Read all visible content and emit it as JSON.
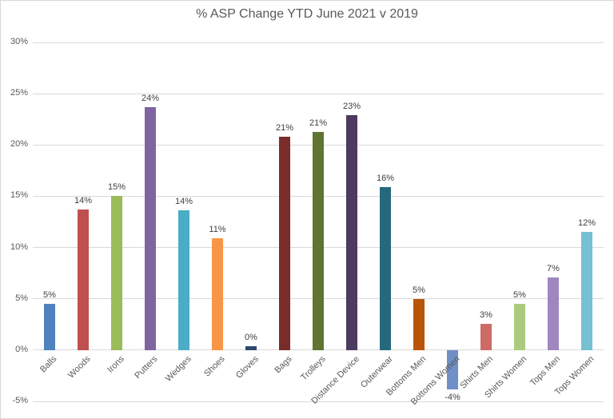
{
  "window": {
    "background_color": "#FFFFFF",
    "border_color": "#D7D7D7"
  },
  "chart_data": {
    "type": "bar",
    "title": "% ASP Change YTD June 2021 v 2019",
    "categories": [
      "Balls",
      "Woods",
      "Irons",
      "Putters",
      "Wedges",
      "Shoes",
      "Gloves",
      "Bags",
      "Trolleys",
      "Distance Device",
      "Outerwear",
      "Bottoms Men",
      "Bottoms Women",
      "Shirts Men",
      "Shirts Women",
      "Tops Men",
      "Tops Women"
    ],
    "values": [
      4.5,
      13.7,
      15.0,
      23.7,
      13.6,
      10.9,
      0.4,
      20.8,
      21.3,
      22.9,
      15.9,
      5.0,
      -3.8,
      2.6,
      4.5,
      7.1,
      11.5
    ],
    "data_labels": [
      "5%",
      "14%",
      "15%",
      "24%",
      "14%",
      "11%",
      "0%",
      "21%",
      "21%",
      "23%",
      "16%",
      "5%",
      "-4%",
      "3%",
      "5%",
      "7%",
      "12%"
    ],
    "bar_colors": [
      "#4F81BD",
      "#C0504D",
      "#9BBB59",
      "#8064A2",
      "#4BACC6",
      "#F79646",
      "#2C4A6E",
      "#7A2C2B",
      "#5F7530",
      "#4D3A60",
      "#26697C",
      "#B85509",
      "#6F8FC6",
      "#CD6B67",
      "#ABCA7D",
      "#9E86BE",
      "#75C0D3"
    ],
    "xlabel": "",
    "ylabel": "",
    "ylim": [
      -5,
      30
    ],
    "yticks": [
      30,
      25,
      20,
      15,
      10,
      5,
      0,
      -5
    ],
    "ytick_labels": [
      "30%",
      "25%",
      "20%",
      "15%",
      "10%",
      "5%",
      "0%",
      "-5%"
    ],
    "grid": true,
    "legend_position": "none",
    "colors": {
      "title_text": "#595959",
      "axis_text": "#595959",
      "data_label_text": "#404040",
      "gridline": "#D9D9D9"
    }
  }
}
